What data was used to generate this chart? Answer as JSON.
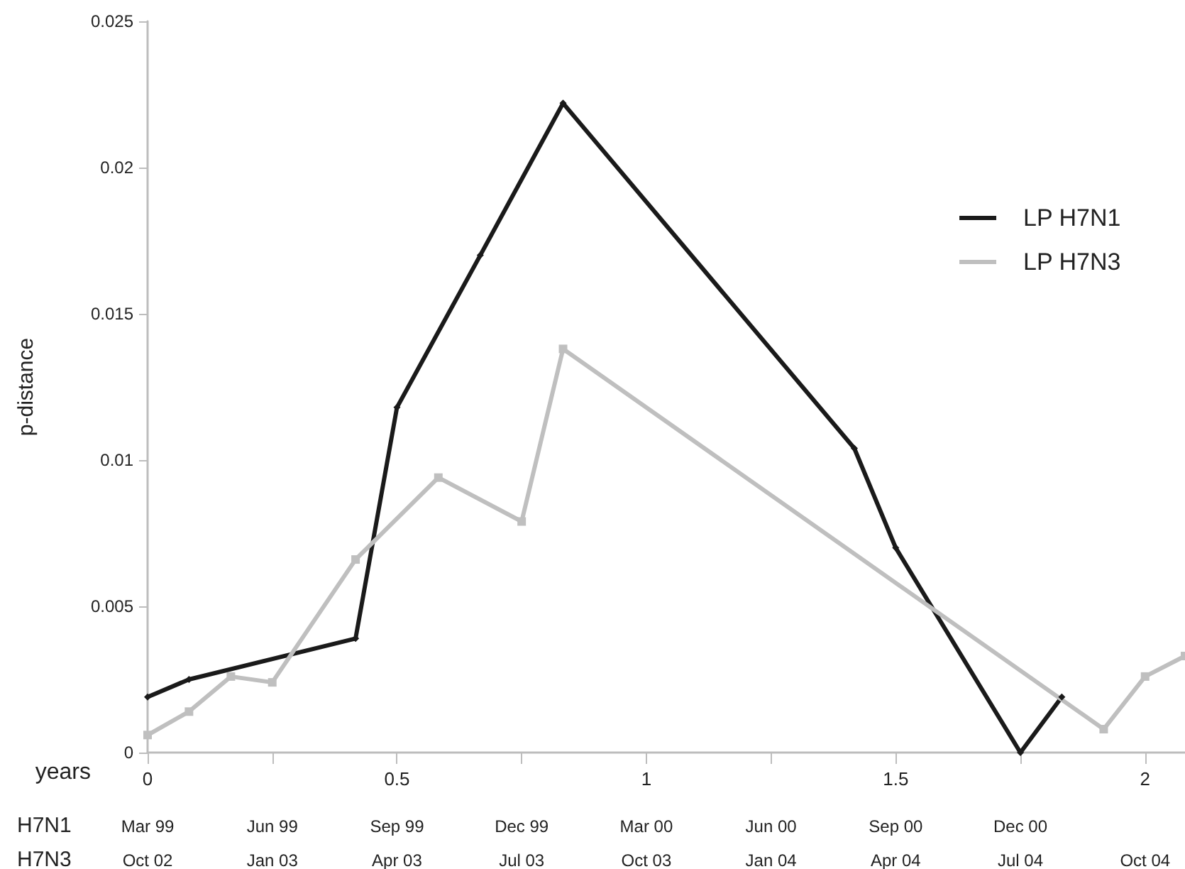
{
  "chart_data": {
    "type": "line",
    "xlabel": "years",
    "ylabel": "p-distance",
    "xlim": [
      0,
      2.08
    ],
    "xticks": [
      0,
      {
        "value": 0.25,
        "label": null
      },
      0.5,
      {
        "value": 0.75,
        "label": null
      },
      1,
      {
        "value": 1.25,
        "label": null
      },
      1.5,
      {
        "value": 1.75,
        "label": null
      },
      2
    ],
    "ylim": [
      0,
      0.025
    ],
    "yticks": [
      0,
      0.005,
      0.01,
      0.015,
      0.02,
      0.025
    ],
    "annotations": [
      "H7N1",
      "Mar 99",
      "Jun 99",
      "Sep 99",
      "Dec 99",
      "Mar 00",
      "Jun 00",
      "Sep 00",
      "Dec 00",
      "H7N3",
      "Oct 02",
      "Jan 03",
      "Apr 03",
      "Jul 03",
      "Oct 03",
      "Jan 04",
      "Apr 04",
      "Jul 04",
      "Oct 04"
    ],
    "grid": false,
    "legend": "right",
    "line_style": "solid",
    "series": [
      {
        "name": "LP H7N1",
        "color": "#1a1a1a",
        "marker": "diamond",
        "x": [
          0,
          0.083,
          0.417,
          0.5,
          0.667,
          0.833,
          1.417,
          1.5,
          1.75,
          1.833
        ],
        "values": [
          0.0019,
          0.0025,
          0.0039,
          0.0118,
          0.017,
          0.0222,
          0.0104,
          0.007,
          0,
          0.0019
        ]
      },
      {
        "name": "LP H7N3",
        "color": "#bfbfbf",
        "marker": "square",
        "x": [
          0,
          0.083,
          0.167,
          0.25,
          0.417,
          0.583,
          0.75,
          0.833,
          1.917,
          2.0,
          2.08
        ],
        "values": [
          0.0006,
          0.0014,
          0.0026,
          0.0024,
          0.0066,
          0.0094,
          0.0079,
          0.0138,
          0.0008,
          0.0026,
          0.0033
        ]
      }
    ]
  }
}
